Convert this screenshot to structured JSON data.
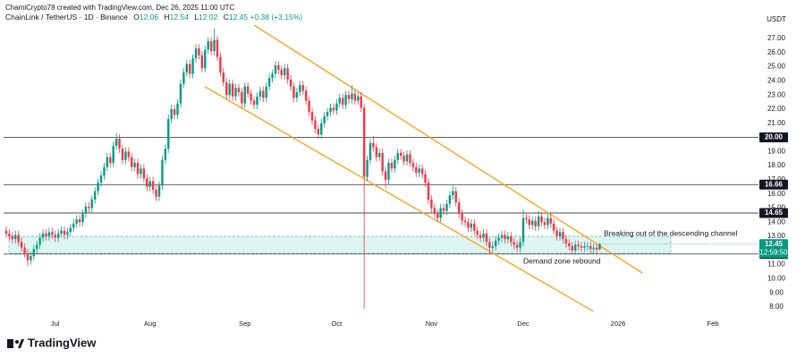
{
  "header": {
    "credit": "ChamiCrypto78 created with TradingView.com, Dec 26, 2025 11:00 UTC",
    "symbol": "ChainLink / TetherUS · 1D · Binance",
    "ohlc_labels": [
      "O",
      "H",
      "L",
      "C"
    ],
    "change": "+0.38 (+3.15%)"
  },
  "chart_data": {
    "type": "candlestick",
    "categories": [
      null,
      null,
      null,
      null,
      null,
      null,
      null,
      null,
      null,
      null,
      null,
      null,
      null,
      null,
      null,
      null,
      "Jul",
      null,
      null,
      null,
      null,
      null,
      null,
      null,
      null,
      null,
      null,
      null,
      null,
      null,
      null,
      null,
      null,
      null,
      null,
      null,
      null,
      null,
      null,
      null,
      null,
      null,
      null,
      null,
      null,
      null,
      null,
      "Aug",
      null,
      null,
      null,
      null,
      null,
      null,
      null,
      null,
      null,
      null,
      null,
      null,
      null,
      null,
      null,
      null,
      null,
      null,
      null,
      null,
      null,
      null,
      null,
      null,
      null,
      null,
      null,
      null,
      null,
      null,
      "Sep",
      null,
      null,
      null,
      null,
      null,
      null,
      null,
      null,
      null,
      null,
      null,
      null,
      null,
      null,
      null,
      null,
      null,
      null,
      null,
      null,
      null,
      null,
      null,
      null,
      null,
      null,
      null,
      null,
      null,
      "Oct",
      null,
      null,
      null,
      null,
      null,
      null,
      null,
      null,
      null,
      null,
      null,
      null,
      null,
      null,
      null,
      null,
      null,
      null,
      null,
      null,
      null,
      null,
      null,
      null,
      null,
      null,
      null,
      null,
      null,
      null,
      "Nov",
      null,
      null,
      null,
      null,
      null,
      null,
      null,
      null,
      null,
      null,
      null,
      null,
      null,
      null,
      null,
      null,
      null,
      null,
      null,
      null,
      null,
      null,
      null,
      null,
      null,
      null,
      null,
      null,
      null,
      "Dec",
      null,
      null,
      null,
      null,
      null,
      null,
      null,
      null,
      null,
      null,
      null,
      null,
      null,
      null,
      null,
      null,
      null,
      null,
      null,
      null,
      null,
      null,
      null,
      null,
      null,
      null,
      null,
      null,
      null,
      null,
      "2026",
      null,
      null,
      null,
      null,
      null,
      null,
      null,
      null,
      null,
      null,
      null,
      null,
      null,
      null,
      null,
      null,
      null,
      null,
      null,
      null,
      null,
      null,
      null,
      null,
      null,
      null,
      null,
      null,
      null,
      null,
      "Feb",
      null,
      null,
      null,
      null,
      null,
      null,
      null,
      null,
      null,
      null,
      null,
      null,
      null,
      null,
      null,
      null
    ],
    "open": [
      13.4,
      13.2,
      13.0,
      12.8,
      13.1,
      12.6,
      12.2,
      11.8,
      11.3,
      11.6,
      12.1,
      12.4,
      12.9,
      13.2,
      13.0,
      13.3,
      13.1,
      12.9,
      13.2,
      13.4,
      13.1,
      13.3,
      13.6,
      13.9,
      14.2,
      14.0,
      14.6,
      15.1,
      15.0,
      15.6,
      16.2,
      16.8,
      17.3,
      17.9,
      18.6,
      18.2,
      19.4,
      19.9,
      19.2,
      18.4,
      19.0,
      18.6,
      17.9,
      18.2,
      17.4,
      17.8,
      17.1,
      16.5,
      16.9,
      16.3,
      15.8,
      16.6,
      18.4,
      19.2,
      21.3,
      22.0,
      21.6,
      22.4,
      23.8,
      24.6,
      25.2,
      24.5,
      25.6,
      26.3,
      25.8,
      24.9,
      26.2,
      26.8,
      26.1,
      26.9,
      25.7,
      24.6,
      23.9,
      23.0,
      23.8,
      22.9,
      23.5,
      23.2,
      22.4,
      23.6,
      23.1,
      22.6,
      22.3,
      22.9,
      23.3,
      22.8,
      23.6,
      24.2,
      24.5,
      25.1,
      24.8,
      24.4,
      24.9,
      24.1,
      23.6,
      22.8,
      23.2,
      23.7,
      23.3,
      22.6,
      21.8,
      21.2,
      20.6,
      20.2,
      21.0,
      21.5,
      21.8,
      22.1,
      21.9,
      22.4,
      22.8,
      22.3,
      23.0,
      22.7,
      23.1,
      22.6,
      22.9,
      22.1,
      17.2,
      18.4,
      19.6,
      19.3,
      18.6,
      18.9,
      17.6,
      17.0,
      18.2,
      17.8,
      18.4,
      18.9,
      18.7,
      18.3,
      18.8,
      18.2,
      17.9,
      17.5,
      17.8,
      17.4,
      16.8,
      15.6,
      15.0,
      14.6,
      14.3,
      15.0,
      14.8,
      15.3,
      15.9,
      16.2,
      15.4,
      14.6,
      14.1,
      14.0,
      13.6,
      13.9,
      13.4,
      13.1,
      12.9,
      13.2,
      12.6,
      12.2,
      12.3,
      12.7,
      12.9,
      13.1,
      12.8,
      13.0,
      12.6,
      12.4,
      12.2,
      12.6,
      14.3,
      14.2,
      13.8,
      14.1,
      13.7,
      14.4,
      14.0,
      13.8,
      14.3,
      13.9,
      13.4,
      13.0,
      13.3,
      12.8,
      12.5,
      12.3,
      12.0,
      12.4,
      12.3,
      12.2,
      12.3,
      12.3,
      12.1,
      12.2,
      12.06,
      null,
      null,
      null,
      null,
      null,
      null,
      null,
      null,
      null,
      null,
      null,
      null,
      null,
      null,
      null,
      null,
      null,
      null,
      null,
      null,
      null,
      null,
      null,
      null,
      null,
      null,
      null,
      null,
      null,
      null,
      null,
      null,
      null,
      null,
      null,
      null,
      null,
      null,
      null,
      null,
      null,
      null,
      null,
      null,
      null,
      null,
      null,
      null,
      null,
      null,
      null,
      null,
      null
    ],
    "high": [
      13.7,
      13.5,
      13.3,
      13.4,
      13.4,
      12.9,
      12.5,
      12.1,
      11.9,
      12.4,
      12.7,
      13.2,
      13.5,
      13.5,
      13.6,
      13.6,
      13.4,
      13.5,
      13.7,
      13.7,
      13.6,
      13.9,
      14.2,
      14.5,
      14.5,
      14.9,
      15.4,
      15.4,
      15.9,
      16.5,
      17.1,
      17.6,
      18.2,
      18.9,
      18.9,
      19.7,
      20.3,
      20.2,
      19.5,
      19.3,
      19.3,
      18.9,
      18.5,
      18.5,
      18.1,
      18.1,
      17.4,
      17.2,
      17.2,
      16.6,
      16.9,
      18.7,
      19.5,
      21.6,
      22.3,
      22.3,
      22.7,
      24.1,
      24.9,
      25.5,
      25.5,
      25.9,
      26.6,
      26.6,
      26.1,
      26.5,
      27.1,
      27.1,
      27.7,
      27.2,
      26.0,
      24.9,
      24.2,
      24.1,
      24.1,
      23.8,
      23.8,
      23.5,
      23.9,
      23.9,
      23.4,
      22.9,
      23.2,
      23.6,
      23.6,
      23.9,
      24.5,
      24.8,
      25.4,
      25.4,
      25.1,
      25.2,
      25.2,
      24.4,
      23.9,
      23.5,
      24.0,
      24.0,
      23.6,
      22.9,
      22.1,
      21.5,
      20.9,
      21.3,
      21.8,
      22.1,
      22.4,
      22.4,
      22.7,
      23.1,
      23.1,
      23.3,
      23.3,
      23.7,
      23.4,
      23.2,
      23.2,
      22.4,
      18.7,
      19.9,
      20.1,
      19.6,
      19.2,
      19.2,
      17.9,
      18.5,
      18.5,
      18.7,
      19.2,
      19.2,
      19.0,
      19.1,
      19.1,
      18.5,
      18.2,
      18.1,
      18.1,
      17.7,
      17.1,
      15.9,
      15.3,
      14.9,
      15.3,
      15.3,
      15.6,
      16.2,
      16.6,
      16.5,
      15.7,
      14.9,
      14.4,
      14.3,
      14.2,
      14.2,
      13.7,
      13.4,
      13.5,
      13.5,
      12.9,
      12.6,
      13.0,
      13.2,
      13.4,
      13.4,
      13.3,
      13.3,
      12.9,
      12.7,
      12.9,
      14.9,
      14.6,
      14.5,
      14.4,
      14.4,
      14.8,
      14.7,
      14.3,
      14.6,
      14.6,
      14.2,
      13.7,
      13.6,
      13.6,
      13.1,
      12.8,
      12.6,
      12.7,
      12.7,
      12.6,
      12.6,
      12.6,
      12.6,
      12.5,
      12.5,
      12.54,
      null,
      null,
      null,
      null,
      null,
      null,
      null,
      null,
      null,
      null,
      null,
      null,
      null,
      null,
      null,
      null,
      null,
      null,
      null,
      null,
      null,
      null,
      null,
      null,
      null,
      null,
      null,
      null,
      null,
      null,
      null,
      null,
      null,
      null,
      null,
      null,
      null,
      null,
      null,
      null,
      null,
      null,
      null,
      null,
      null,
      null,
      null,
      null,
      null,
      null,
      null,
      null,
      null
    ],
    "low": [
      12.9,
      12.7,
      12.5,
      12.5,
      12.3,
      11.9,
      11.5,
      10.9,
      11.0,
      11.3,
      11.8,
      12.1,
      12.6,
      12.7,
      12.7,
      12.8,
      12.6,
      12.6,
      12.9,
      12.8,
      12.8,
      13.0,
      13.3,
      13.6,
      13.7,
      13.7,
      14.3,
      14.7,
      14.7,
      15.3,
      15.9,
      16.5,
      17.0,
      17.6,
      17.9,
      17.9,
      19.1,
      18.9,
      18.1,
      18.1,
      18.3,
      17.6,
      17.6,
      17.1,
      17.1,
      16.8,
      16.2,
      16.2,
      16.0,
      15.5,
      15.5,
      16.3,
      18.1,
      18.9,
      21.0,
      21.3,
      21.3,
      22.1,
      23.5,
      24.3,
      24.2,
      24.2,
      25.3,
      25.5,
      24.6,
      24.6,
      25.9,
      25.8,
      25.8,
      25.4,
      24.3,
      23.6,
      22.7,
      22.7,
      22.6,
      22.6,
      22.9,
      22.1,
      22.1,
      22.8,
      22.3,
      22.0,
      22.0,
      22.6,
      22.5,
      22.5,
      23.3,
      23.9,
      24.2,
      24.5,
      24.1,
      24.1,
      23.8,
      23.3,
      22.5,
      22.5,
      22.9,
      23.0,
      22.3,
      21.5,
      20.9,
      20.3,
      19.9,
      19.9,
      20.7,
      21.2,
      21.5,
      21.6,
      21.6,
      22.1,
      22.0,
      22.0,
      22.4,
      22.4,
      22.3,
      22.3,
      21.8,
      7.9,
      16.9,
      18.1,
      19.0,
      18.3,
      18.3,
      17.3,
      16.4,
      16.7,
      17.5,
      17.5,
      18.1,
      18.4,
      18.0,
      18.0,
      17.9,
      17.6,
      17.2,
      17.2,
      17.1,
      16.5,
      15.3,
      14.7,
      14.3,
      14.0,
      14.0,
      14.5,
      14.5,
      15.0,
      15.6,
      15.1,
      14.3,
      13.8,
      13.7,
      13.3,
      13.3,
      13.1,
      12.8,
      12.6,
      12.6,
      12.3,
      11.8,
      11.9,
      12.0,
      12.4,
      12.6,
      12.5,
      12.5,
      12.3,
      12.1,
      11.9,
      11.9,
      12.3,
      13.9,
      13.5,
      13.5,
      13.4,
      13.4,
      13.7,
      13.5,
      13.5,
      13.6,
      13.1,
      12.7,
      12.7,
      12.5,
      12.2,
      12.0,
      11.7,
      11.7,
      12.0,
      11.9,
      11.9,
      12.0,
      11.8,
      11.8,
      11.8,
      12.02,
      null,
      null,
      null,
      null,
      null,
      null,
      null,
      null,
      null,
      null,
      null,
      null,
      null,
      null,
      null,
      null,
      null,
      null,
      null,
      null,
      null,
      null,
      null,
      null,
      null,
      null,
      null,
      null,
      null,
      null,
      null,
      null,
      null,
      null,
      null,
      null,
      null,
      null,
      null,
      null,
      null,
      null,
      null,
      null,
      null,
      null,
      null,
      null,
      null,
      null,
      null,
      null,
      null
    ],
    "close": [
      13.2,
      13.0,
      12.8,
      13.1,
      12.6,
      12.2,
      11.8,
      11.3,
      11.6,
      12.1,
      12.4,
      12.9,
      13.2,
      13.0,
      13.3,
      13.1,
      12.9,
      13.2,
      13.4,
      13.1,
      13.3,
      13.6,
      13.9,
      14.2,
      14.0,
      14.6,
      15.1,
      15.0,
      15.6,
      16.2,
      16.8,
      17.3,
      17.9,
      18.6,
      18.2,
      19.4,
      19.9,
      19.2,
      18.4,
      19.0,
      18.6,
      17.9,
      18.2,
      17.4,
      17.8,
      17.1,
      16.5,
      16.9,
      16.3,
      15.8,
      16.6,
      18.4,
      19.2,
      21.3,
      22.0,
      21.6,
      22.4,
      23.8,
      24.6,
      25.2,
      24.5,
      25.6,
      26.3,
      25.8,
      24.9,
      26.2,
      26.8,
      26.1,
      26.9,
      25.7,
      24.6,
      23.9,
      23.0,
      23.8,
      22.9,
      23.5,
      23.2,
      22.4,
      23.6,
      23.1,
      22.6,
      22.3,
      22.9,
      23.3,
      22.8,
      23.6,
      24.2,
      24.5,
      25.1,
      24.8,
      24.4,
      24.9,
      24.1,
      23.6,
      22.8,
      23.2,
      23.7,
      23.3,
      22.6,
      21.8,
      21.2,
      20.6,
      20.2,
      21.0,
      21.5,
      21.8,
      22.1,
      21.9,
      22.4,
      22.8,
      22.3,
      23.0,
      22.7,
      23.1,
      22.6,
      22.9,
      22.1,
      17.2,
      18.4,
      19.6,
      19.3,
      18.6,
      18.9,
      17.6,
      17.0,
      18.2,
      17.8,
      18.4,
      18.9,
      18.7,
      18.3,
      18.8,
      18.2,
      17.9,
      17.5,
      17.8,
      17.4,
      16.8,
      15.6,
      15.0,
      14.6,
      14.3,
      15.0,
      14.8,
      15.3,
      15.9,
      16.2,
      15.4,
      14.6,
      14.1,
      14.0,
      13.6,
      13.9,
      13.4,
      13.1,
      12.9,
      13.2,
      12.6,
      12.2,
      12.3,
      12.7,
      12.9,
      13.1,
      12.8,
      13.0,
      12.6,
      12.4,
      12.2,
      12.6,
      14.3,
      14.2,
      13.8,
      14.1,
      13.7,
      14.4,
      14.0,
      13.8,
      14.3,
      13.9,
      13.4,
      13.0,
      13.3,
      12.8,
      12.5,
      12.3,
      12.0,
      12.4,
      12.3,
      12.2,
      12.3,
      12.3,
      12.1,
      12.2,
      12.06,
      12.45,
      null,
      null,
      null,
      null,
      null,
      null,
      null,
      null,
      null,
      null,
      null,
      null,
      null,
      null,
      null,
      null,
      null,
      null,
      null,
      null,
      null,
      null,
      null,
      null,
      null,
      null,
      null,
      null,
      null,
      null,
      null,
      null,
      null,
      null,
      null,
      null,
      null,
      null,
      null,
      null,
      null,
      null,
      null,
      null,
      null,
      null,
      null,
      null,
      null,
      null,
      null,
      null,
      null
    ],
    "up_color": "#089981",
    "down_color": "#f23645",
    "ylim": [
      7.05,
      27.95
    ],
    "yticks": [
      {
        "value": 27,
        "label": "27.00"
      },
      {
        "value": 26,
        "label": "26.00"
      },
      {
        "value": 25,
        "label": "25.00"
      },
      {
        "value": 24,
        "label": "24.00"
      },
      {
        "value": 23,
        "label": "23.00"
      },
      {
        "value": 22,
        "label": "22.00"
      },
      {
        "value": 21,
        "label": "21.00"
      },
      {
        "value": 19,
        "label": "19.00"
      },
      {
        "value": 18,
        "label": "18.00"
      },
      {
        "value": 17,
        "label": "17.00"
      },
      {
        "value": 16,
        "label": "16.00"
      },
      {
        "value": 15,
        "label": "15.00"
      },
      {
        "value": 14,
        "label": "14.00"
      },
      {
        "value": 13,
        "label": "13.00"
      },
      {
        "value": 11,
        "label": "11.00"
      },
      {
        "value": 10,
        "label": "10.00"
      },
      {
        "value": 9,
        "label": "9.00"
      },
      {
        "value": 8,
        "label": "8.00"
      }
    ],
    "y_unit": "USDT",
    "levels": [
      {
        "value": 20,
        "label": "20.00"
      },
      {
        "value": 16.66,
        "label": "16.66"
      },
      {
        "value": 14.65,
        "label": "14.65"
      },
      {
        "value": 11.75,
        "label": "11.75"
      }
    ],
    "countdown": "12:59:50",
    "demand_zone": [
      11.8,
      13.0
    ],
    "channel_color": "#f5a623",
    "channel": [
      {
        "x": [
          81,
          208
        ],
        "y": [
          27.95,
          10.4
        ]
      },
      {
        "x": [
          65,
          192
        ],
        "y": [
          23.58,
          7.68
        ]
      }
    ],
    "annotations": [
      "Breaking out of the descending channel",
      "Demand zone rebound"
    ]
  },
  "footer": {
    "logo": "TradingView"
  }
}
